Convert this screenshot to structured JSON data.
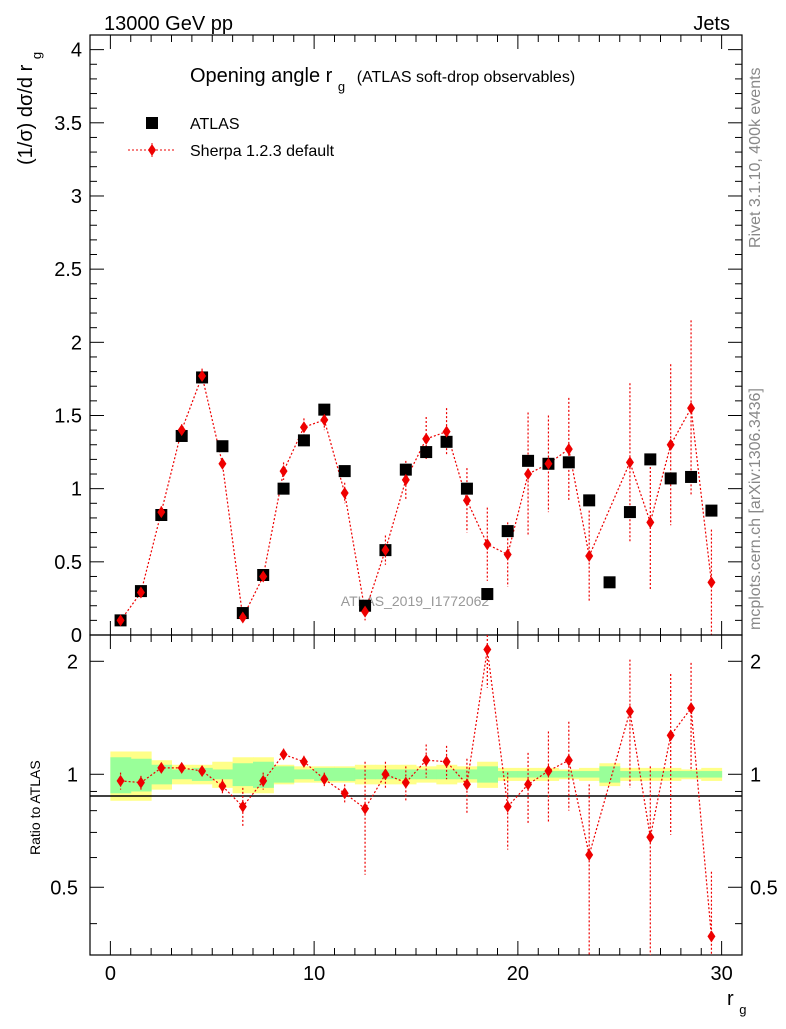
{
  "header": {
    "left": "13000 GeV pp",
    "right": "Jets"
  },
  "side_labels": {
    "rivet": "Rivet 3.1.10,  400k events",
    "mcplots": "mcplots.cern.ch [arXiv:1306.3436]"
  },
  "watermark": "ATLAS_2019_I1772062",
  "colors": {
    "data": "#000000",
    "mc": "#ee0000",
    "band_inner": "#99ff99",
    "band_outer": "#ffff88"
  },
  "chart_data": [
    {
      "type": "scatter",
      "title": "Opening angle r",
      "title_sub": "g",
      "title_suffix": "(ATLAS soft-drop observables)",
      "ylabel": "(1/σ) dσ/d r",
      "ylabel_sub": "g",
      "xlim": [
        -1,
        31
      ],
      "ylim": [
        0,
        4.1
      ],
      "yticks": [
        "0",
        "0.5",
        "1",
        "1.5",
        "2",
        "2.5",
        "3",
        "3.5",
        "4"
      ],
      "x": [
        0.5,
        1.5,
        2.5,
        3.5,
        4.5,
        5.5,
        6.5,
        7.5,
        8.5,
        9.5,
        10.5,
        11.5,
        12.5,
        13.5,
        14.5,
        15.5,
        16.5,
        17.5,
        18.5,
        19.5,
        20.5,
        21.5,
        22.5,
        23.5,
        24.5,
        25.5,
        26.5,
        27.5,
        28.5,
        29.5
      ],
      "series": [
        {
          "name": "ATLAS",
          "values": [
            0.1,
            0.3,
            0.82,
            1.36,
            1.76,
            1.29,
            0.15,
            0.41,
            1.0,
            1.33,
            1.54,
            1.12,
            0.2,
            0.58,
            1.13,
            1.25,
            1.32,
            1.0,
            0.28,
            0.71,
            1.19,
            1.17,
            1.18,
            0.92,
            0.36,
            0.84,
            1.2,
            1.07,
            1.08,
            0.85
          ],
          "errors": [
            0,
            0,
            0,
            0,
            0,
            0,
            0,
            0,
            0,
            0,
            0,
            0,
            0,
            0,
            0,
            0,
            0,
            0,
            0,
            0,
            0,
            0,
            0,
            0,
            0,
            0,
            0,
            0,
            0,
            0
          ]
        },
        {
          "name": "Sherpa 1.2.3 default",
          "values": [
            0.1,
            0.29,
            0.84,
            1.4,
            1.77,
            1.17,
            0.12,
            0.4,
            1.12,
            1.42,
            1.47,
            0.97,
            0.16,
            0.58,
            1.06,
            1.34,
            1.39,
            0.92,
            0.62,
            0.55,
            1.1,
            1.17,
            1.27,
            0.54,
            null,
            1.18,
            0.77,
            1.3,
            1.55,
            0.36
          ],
          "errors": [
            0.02,
            0.03,
            0.04,
            0.04,
            0.05,
            0.04,
            0.03,
            0.04,
            0.06,
            0.06,
            0.07,
            0.07,
            0.06,
            0.1,
            0.13,
            0.15,
            0.16,
            0.22,
            0.25,
            0.22,
            0.42,
            0.33,
            0.35,
            0.31,
            null,
            0.54,
            0.46,
            0.55,
            0.6,
            0.36
          ]
        }
      ]
    },
    {
      "type": "scatter",
      "ylabel": "Ratio to ATLAS",
      "xlabel": "r",
      "xlabel_sub": "g",
      "xlim": [
        -1,
        31
      ],
      "ylim": [
        0.33,
        2.35
      ],
      "log_y": true,
      "xticks": [
        "0",
        "10",
        "20",
        "30"
      ],
      "yticks": [
        "0.5",
        "1",
        "2"
      ],
      "x": [
        0.5,
        1.5,
        2.5,
        3.5,
        4.5,
        5.5,
        6.5,
        7.5,
        8.5,
        9.5,
        10.5,
        11.5,
        12.5,
        13.5,
        14.5,
        15.5,
        16.5,
        17.5,
        18.5,
        19.5,
        20.5,
        21.5,
        22.5,
        23.5,
        24.5,
        25.5,
        26.5,
        27.5,
        28.5,
        29.5
      ],
      "series": [
        {
          "name": "Sherpa 1.2.3 default / ATLAS",
          "values": [
            0.96,
            0.95,
            1.04,
            1.04,
            1.02,
            0.93,
            0.82,
            0.96,
            1.13,
            1.08,
            0.97,
            0.89,
            0.81,
            1.0,
            0.95,
            1.09,
            1.08,
            0.94,
            2.15,
            0.82,
            0.94,
            1.02,
            1.09,
            0.61,
            null,
            1.47,
            0.68,
            1.27,
            1.5,
            0.37
          ],
          "errors": [
            0.05,
            0.04,
            0.03,
            0.03,
            0.03,
            0.04,
            0.1,
            0.05,
            0.04,
            0.04,
            0.04,
            0.05,
            0.27,
            0.08,
            0.1,
            0.11,
            0.11,
            0.16,
            0.45,
            0.19,
            0.2,
            0.28,
            0.29,
            0.33,
            null,
            0.55,
            0.37,
            0.58,
            0.48,
            0.18
          ]
        }
      ],
      "band_inner": [
        0.11,
        0.1,
        0.06,
        0.03,
        0.04,
        0.03,
        0.07,
        0.08,
        0.05,
        0.03,
        0.04,
        0.04,
        0.03,
        0.03,
        0.03,
        0.03,
        0.03,
        0.03,
        0.05,
        0.02,
        0.02,
        0.02,
        0.02,
        0.02,
        0.05,
        0.02,
        0.02,
        0.02,
        0.02,
        0.02
      ],
      "band_outer": [
        0.15,
        0.15,
        0.09,
        0.06,
        0.06,
        0.08,
        0.11,
        0.11,
        0.06,
        0.05,
        0.05,
        0.05,
        0.06,
        0.06,
        0.06,
        0.05,
        0.06,
        0.05,
        0.08,
        0.04,
        0.04,
        0.04,
        0.03,
        0.04,
        0.07,
        0.04,
        0.04,
        0.04,
        0.03,
        0.04
      ]
    }
  ]
}
